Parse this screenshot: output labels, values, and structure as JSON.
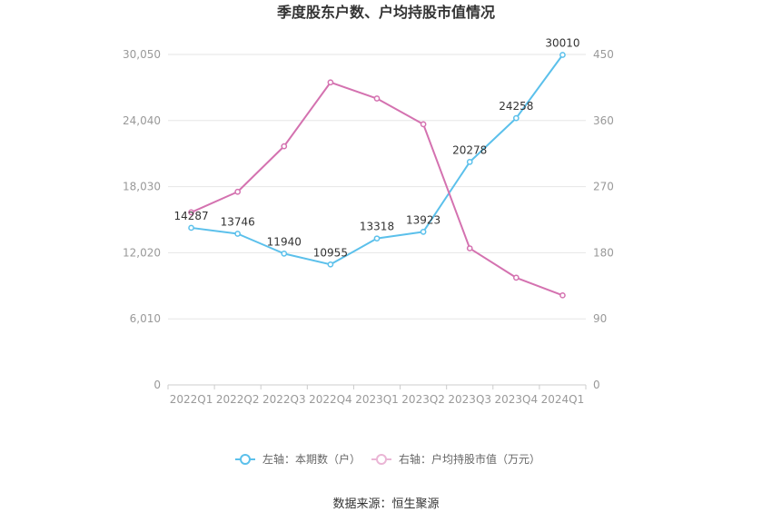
{
  "chart_data": {
    "type": "line",
    "title": "季度股东户数、户均持股市值情况",
    "categories": [
      "2022Q1",
      "2022Q2",
      "2022Q3",
      "2022Q4",
      "2023Q1",
      "2023Q2",
      "2023Q3",
      "2023Q4",
      "2024Q1"
    ],
    "left_axis": {
      "ticks": [
        "0",
        "6,010",
        "12,020",
        "18,030",
        "24,040",
        "30,050"
      ],
      "min": 0,
      "max": 30050
    },
    "right_axis": {
      "ticks": [
        "0",
        "90",
        "180",
        "270",
        "360",
        "450"
      ],
      "min": 0,
      "max": 450
    },
    "grid": true,
    "legend_placement": "bottom",
    "series": [
      {
        "name": "左轴：本期数（户）",
        "axis": "left",
        "color": "#5bc0eb",
        "values": [
          14287,
          13746,
          11940,
          10955,
          13318,
          13923,
          20278,
          24258,
          30010
        ],
        "labels": [
          "14287",
          "13746",
          "11940",
          "10955",
          "13318",
          "13923",
          "20278",
          "24258",
          "30010"
        ]
      },
      {
        "name": "右轴：户均持股市值（万元）",
        "axis": "right",
        "color": "#d472b0",
        "values": [
          235,
          263,
          325,
          412,
          390,
          355,
          186,
          146,
          122
        ]
      }
    ],
    "source": "数据来源：恒生聚源"
  }
}
